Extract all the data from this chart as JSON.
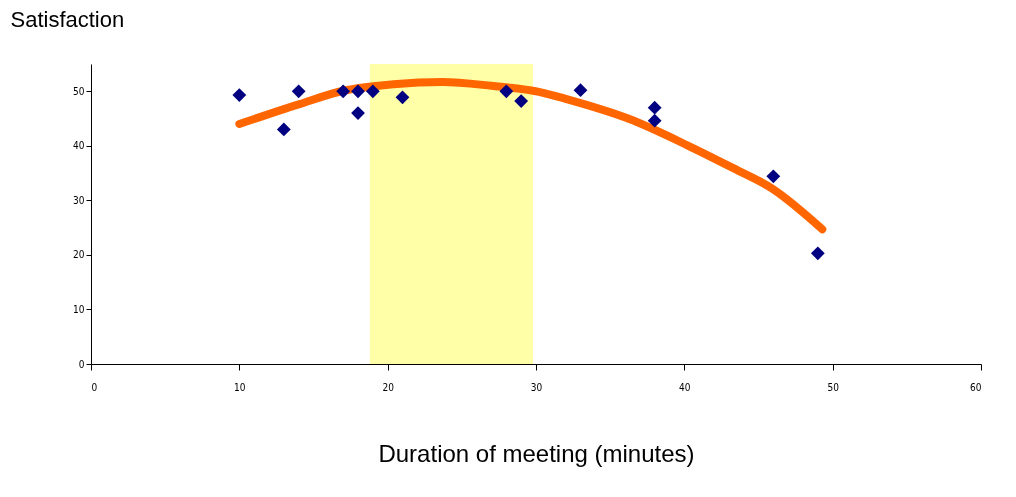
{
  "chart_data": {
    "type": "scatter",
    "ylabel": "Satisfaction",
    "xlabel": "Duration of meeting (minutes)",
    "xlim": [
      0,
      60
    ],
    "xticks": [
      0,
      10,
      20,
      30,
      40,
      50,
      60
    ],
    "ylim": [
      0,
      55
    ],
    "yticks": [
      0,
      10,
      20,
      30,
      40,
      50
    ],
    "grid": false,
    "series": [
      {
        "marker": "diamond",
        "color": "#000080",
        "x": [
          10,
          13,
          14,
          17,
          18,
          18,
          19,
          21,
          28,
          29,
          33,
          38,
          38,
          46,
          49
        ],
        "values": [
          49.3,
          43,
          50,
          50,
          50,
          46,
          50,
          48.9,
          50,
          48.2,
          50.2,
          47,
          44.6,
          34.4,
          20.3
        ]
      },
      {
        "type": "line",
        "color": "#ff6600",
        "x": [
          10,
          14,
          17,
          20.4,
          23.7,
          27,
          30.2,
          32,
          36.3,
          40.2,
          43.3,
          45.9,
          49.3
        ],
        "values": [
          44,
          47.6,
          50.1,
          51.3,
          51.7,
          51,
          49.9,
          48.6,
          44.9,
          40.1,
          35.9,
          32.2,
          24.7
        ]
      }
    ],
    "bands": [
      {
        "axis": "x",
        "from": 18.8,
        "to": 29.8,
        "color": "#ffff99"
      }
    ]
  }
}
